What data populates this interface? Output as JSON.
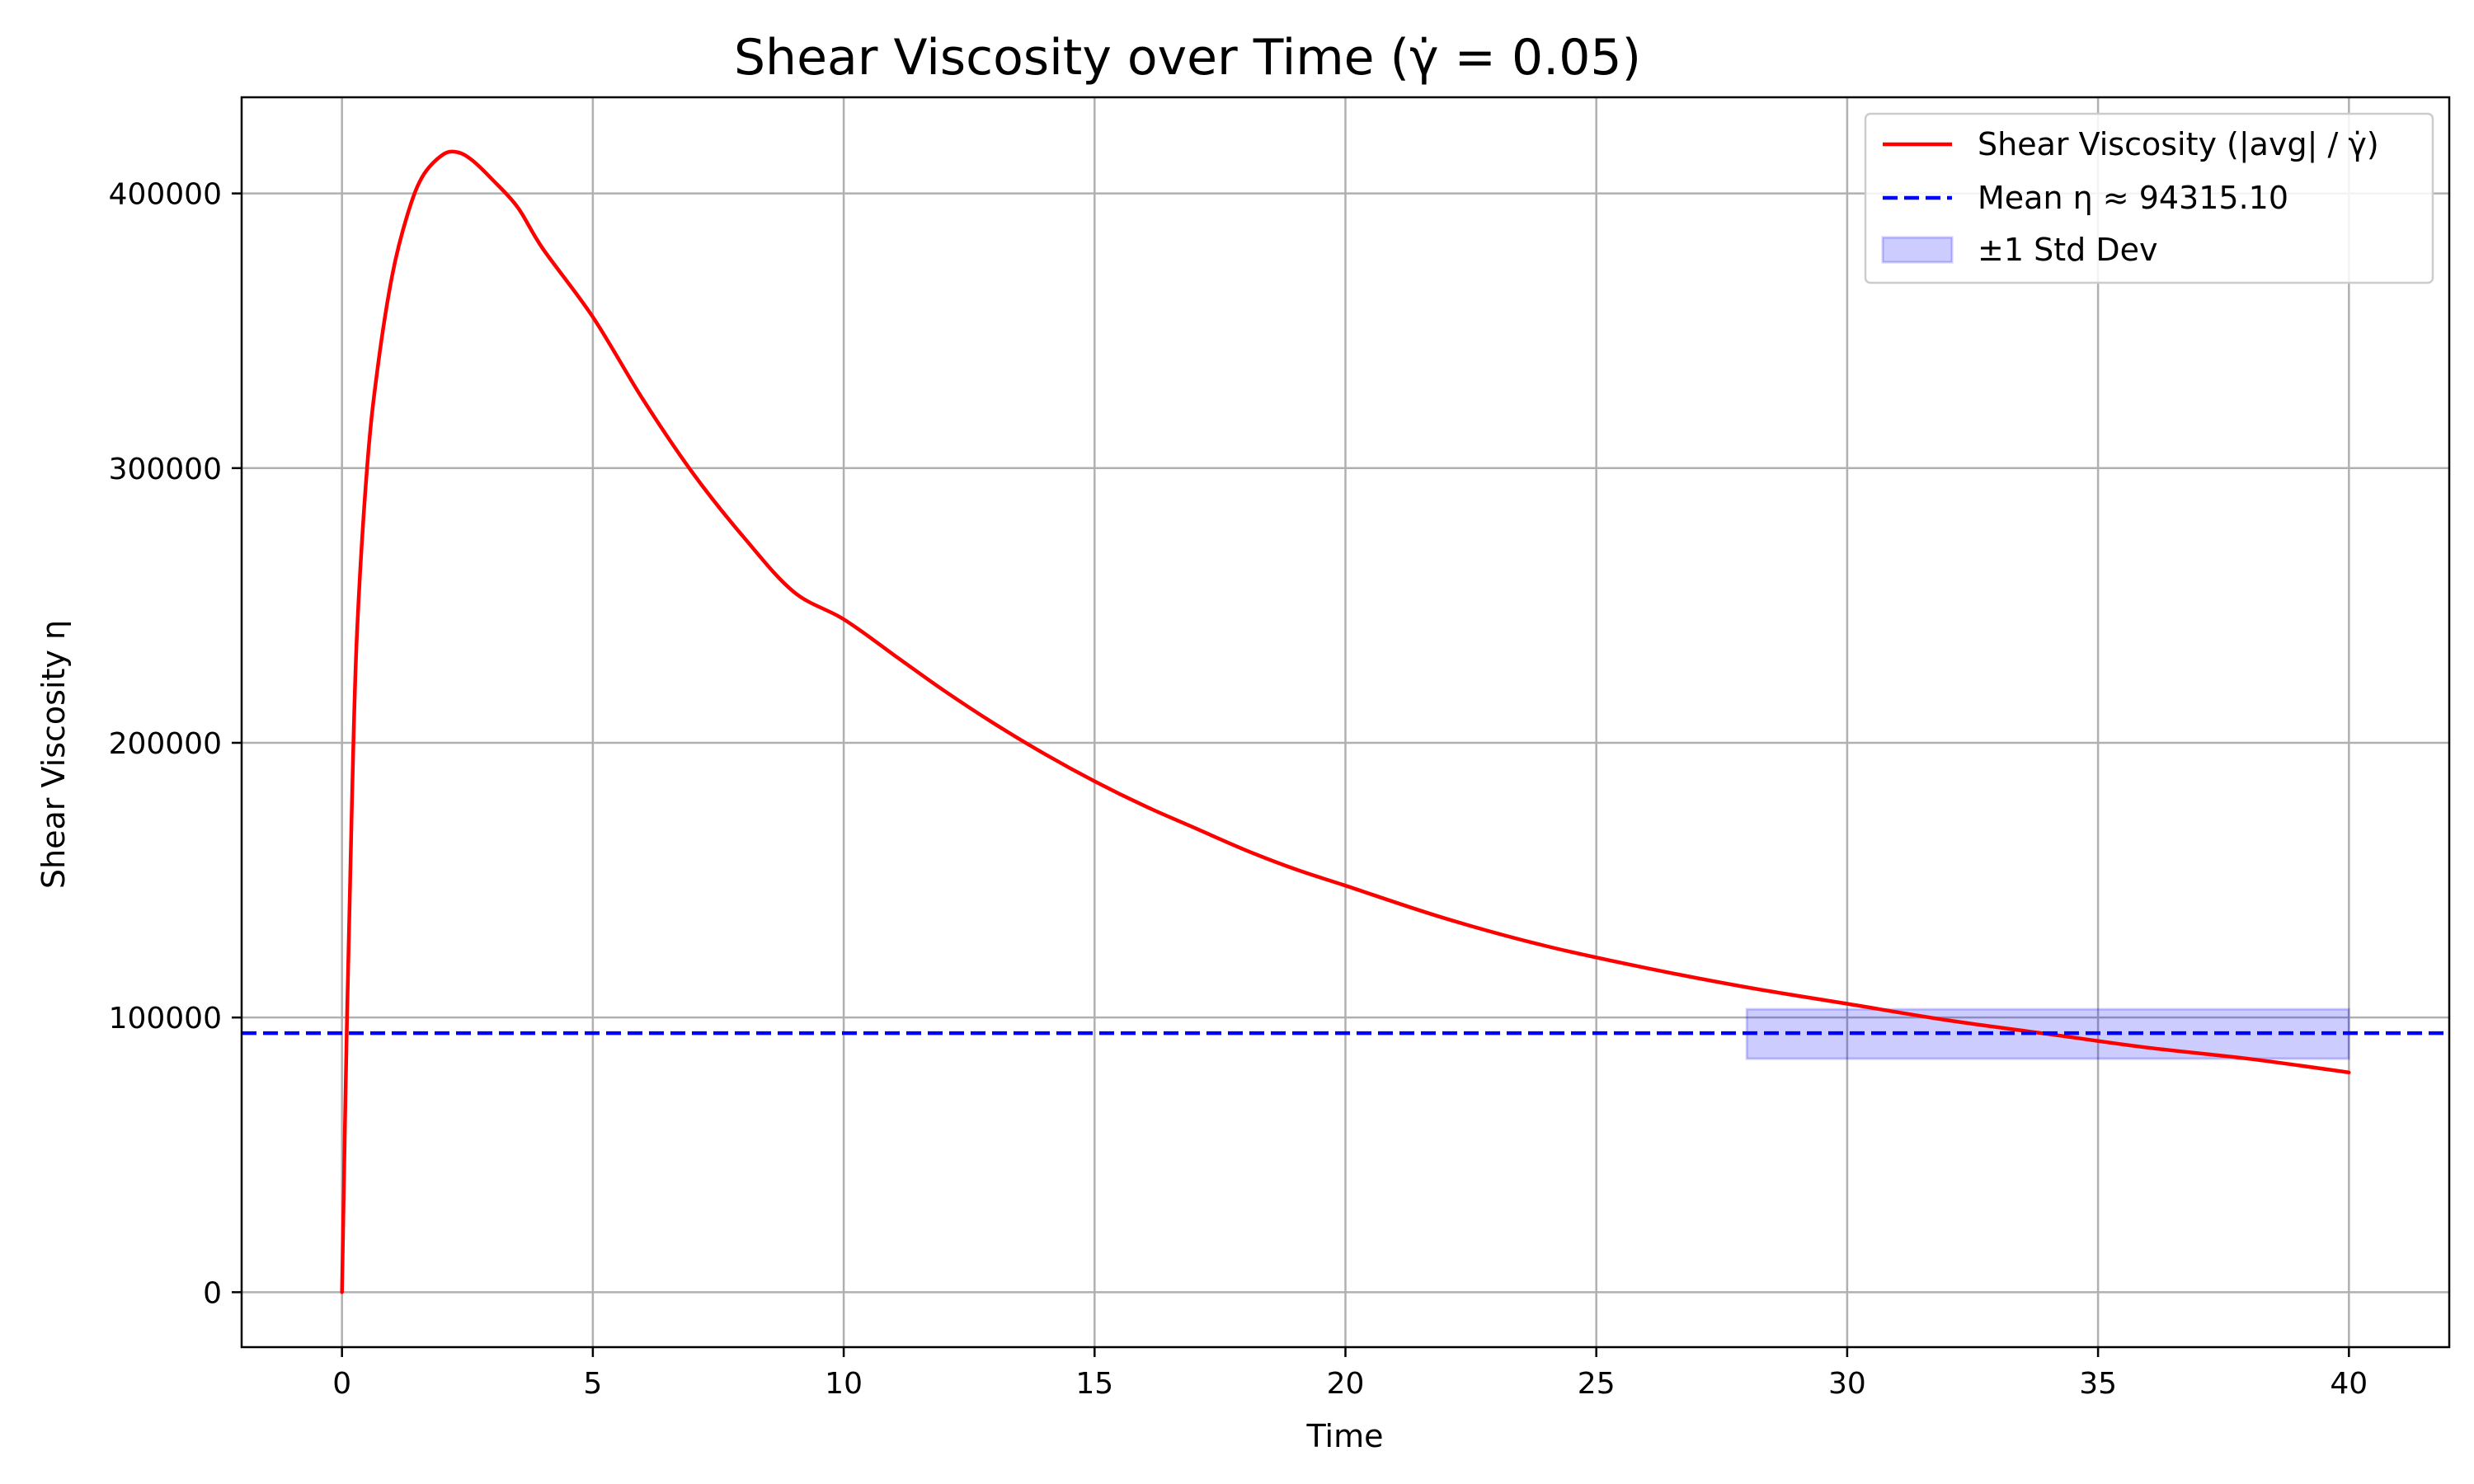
{
  "chart_data": {
    "type": "line",
    "title": "Shear Viscosity over Time (γ̇ = 0.05)",
    "xlabel": "Time",
    "ylabel": "Shear Viscosity η",
    "xlim": [
      -2,
      42
    ],
    "ylim": [
      -20000,
      435000
    ],
    "grid": true,
    "legend_position": "top-right",
    "xticks": [
      0,
      5,
      10,
      15,
      20,
      25,
      30,
      35,
      40
    ],
    "yticks": [
      0,
      100000,
      200000,
      300000,
      400000
    ],
    "series": [
      {
        "name": "Shear Viscosity (|avg| / γ̇)",
        "color": "#ff0000",
        "style": "solid",
        "x": [
          0,
          0.1,
          0.2,
          0.3,
          0.5,
          0.7,
          1.0,
          1.3,
          1.6,
          2.0,
          2.3,
          2.6,
          3.0,
          3.5,
          4.0,
          5.0,
          6.0,
          7.0,
          8.0,
          9.0,
          10.0,
          11.0,
          12.0,
          13.0,
          14.0,
          15.0,
          16.0,
          17.0,
          18.0,
          19.0,
          20.0,
          22.0,
          24.0,
          26.0,
          28.0,
          30.0,
          32.0,
          34.0,
          36.0,
          38.0,
          40.0
        ],
        "values": [
          0,
          100000,
          180000,
          240000,
          300000,
          335000,
          370000,
          392000,
          406000,
          414000,
          415000,
          412000,
          405000,
          395000,
          380000,
          355000,
          325000,
          298000,
          275000,
          255000,
          245000,
          232000,
          219000,
          207000,
          196000,
          186000,
          177000,
          169000,
          161000,
          154000,
          148000,
          136000,
          126000,
          118000,
          111000,
          105000,
          99000,
          94000,
          89000,
          85000,
          80000
        ]
      },
      {
        "name": "Mean η ≈ 94315.10",
        "color": "#0000ff",
        "style": "dashed",
        "value": 94315.1
      },
      {
        "name": "±1 Std Dev",
        "color": "#0000ff",
        "style": "band",
        "x_range": [
          28,
          40
        ],
        "y_range": [
          85000,
          103000
        ]
      }
    ]
  }
}
